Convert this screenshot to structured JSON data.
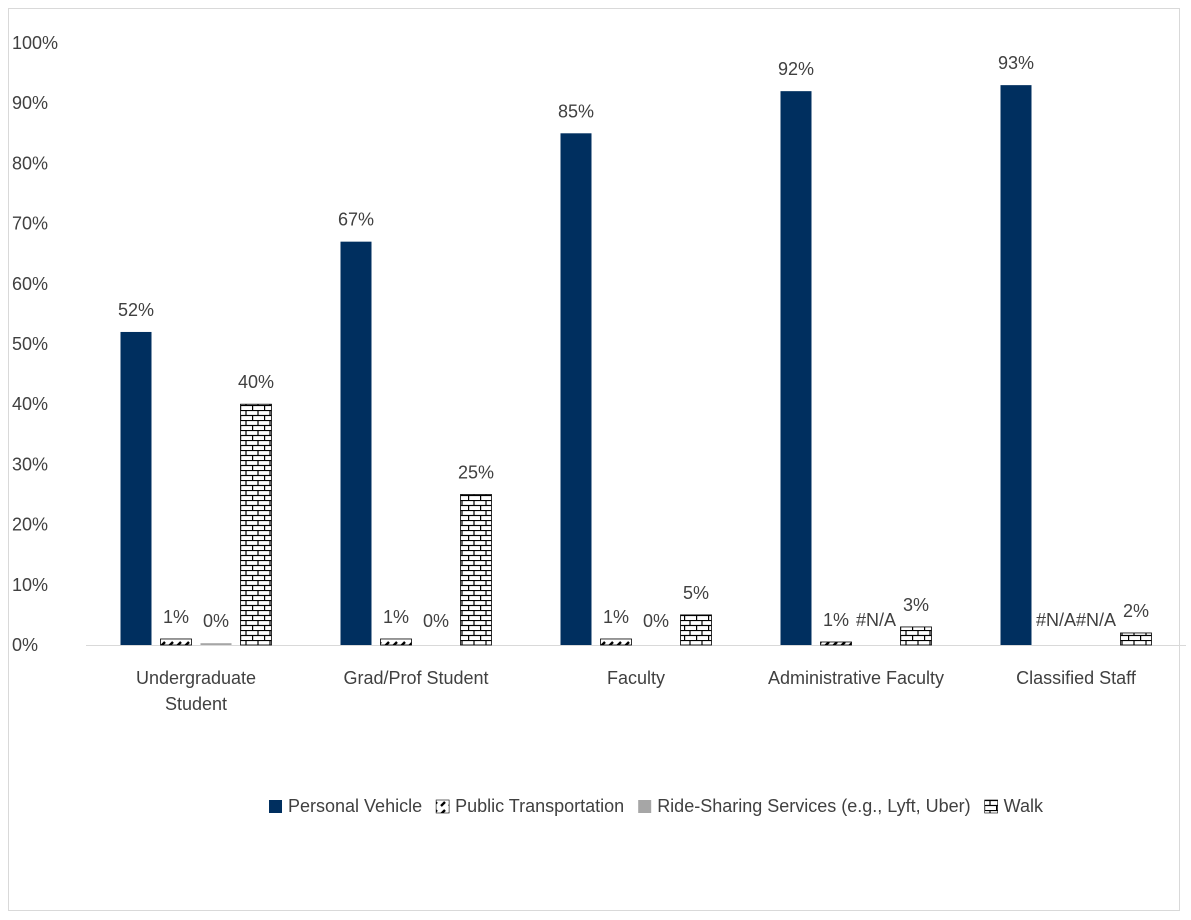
{
  "chart_data": {
    "type": "bar",
    "categories": [
      [
        "Undergraduate",
        "Student"
      ],
      [
        "Grad/Prof Student"
      ],
      [
        "Faculty"
      ],
      [
        "Administrative Faculty"
      ],
      [
        "Classified Staff"
      ]
    ],
    "series": [
      {
        "name": "Personal Vehicle",
        "color": "#002F5F",
        "pattern": "solid",
        "values": [
          52,
          67,
          85,
          92,
          93
        ],
        "labels": [
          "52%",
          "67%",
          "85%",
          "92%",
          "93%"
        ]
      },
      {
        "name": "Public Transportation",
        "color": "#000000",
        "pattern": "diagonal-dash",
        "values": [
          1,
          1,
          1,
          0.5,
          null
        ],
        "labels": [
          "1%",
          "1%",
          "1%",
          "1%",
          "#N/A"
        ]
      },
      {
        "name": "Ride-Sharing Services (e.g., Lyft, Uber)",
        "color": "#A6A6A6",
        "pattern": "solid",
        "values": [
          0.3,
          0,
          0,
          null,
          null
        ],
        "labels": [
          "0%",
          "0%",
          "0%",
          "#N/A",
          "#N/A"
        ]
      },
      {
        "name": "Walk",
        "color": "#000000",
        "pattern": "brick",
        "values": [
          40,
          25,
          5,
          3,
          2
        ],
        "labels": [
          "40%",
          "25%",
          "5%",
          "3%",
          "2%"
        ]
      }
    ],
    "y_ticks": [
      "0%",
      "10%",
      "20%",
      "30%",
      "40%",
      "50%",
      "60%",
      "70%",
      "80%",
      "90%",
      "100%"
    ],
    "ylim": [
      0,
      100
    ],
    "grid": false,
    "legend_position": "bottom"
  }
}
